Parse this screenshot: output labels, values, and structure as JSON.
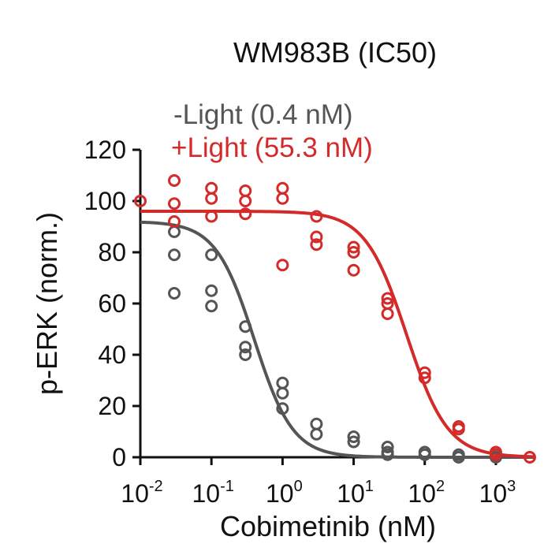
{
  "chart_data": {
    "type": "scatter",
    "title": "WM983B (IC50)",
    "xlabel": "Cobimetinib (nM)",
    "ylabel": "p-ERK (norm.)",
    "x_scale": "log",
    "xlim": [
      0.01,
      3500
    ],
    "ylim": [
      0,
      120
    ],
    "x_ticks": [
      {
        "value": 0.01,
        "base": "10",
        "exp": "-2"
      },
      {
        "value": 0.1,
        "base": "10",
        "exp": "-1"
      },
      {
        "value": 1,
        "base": "10",
        "exp": "0"
      },
      {
        "value": 10,
        "base": "10",
        "exp": "1"
      },
      {
        "value": 100,
        "base": "10",
        "exp": "2"
      },
      {
        "value": 1000,
        "base": "10",
        "exp": "3"
      }
    ],
    "y_ticks": [
      "0",
      "20",
      "40",
      "60",
      "80",
      "100",
      "120"
    ],
    "grid": false,
    "legend_position": "top-left",
    "series": [
      {
        "name": "-Light (0.4 nM)",
        "color": "#555555",
        "ic50": 0.4,
        "fit": {
          "top": 92,
          "bottom": 0,
          "hill": 1.6
        },
        "points": [
          {
            "x": 0.03,
            "y": 88
          },
          {
            "x": 0.03,
            "y": 79
          },
          {
            "x": 0.03,
            "y": 64
          },
          {
            "x": 0.1,
            "y": 79
          },
          {
            "x": 0.1,
            "y": 65
          },
          {
            "x": 0.1,
            "y": 59
          },
          {
            "x": 0.3,
            "y": 51
          },
          {
            "x": 0.3,
            "y": 43
          },
          {
            "x": 0.3,
            "y": 40
          },
          {
            "x": 1,
            "y": 29
          },
          {
            "x": 1,
            "y": 25
          },
          {
            "x": 1,
            "y": 19
          },
          {
            "x": 3,
            "y": 13
          },
          {
            "x": 3,
            "y": 9
          },
          {
            "x": 10,
            "y": 8
          },
          {
            "x": 10,
            "y": 6
          },
          {
            "x": 30,
            "y": 4
          },
          {
            "x": 30,
            "y": 2
          },
          {
            "x": 30,
            "y": 1
          },
          {
            "x": 100,
            "y": 2
          },
          {
            "x": 100,
            "y": 1
          },
          {
            "x": 300,
            "y": 1
          },
          {
            "x": 300,
            "y": 0
          },
          {
            "x": 1000,
            "y": 1
          },
          {
            "x": 1000,
            "y": 0
          }
        ]
      },
      {
        "name": "+Light (55.3 nM)",
        "color": "#d42a2a",
        "ic50": 55.3,
        "fit": {
          "top": 96,
          "bottom": 0,
          "hill": 1.5
        },
        "points": [
          {
            "x": 0.01,
            "y": 100
          },
          {
            "x": 0.03,
            "y": 108
          },
          {
            "x": 0.03,
            "y": 99
          },
          {
            "x": 0.03,
            "y": 92
          },
          {
            "x": 0.1,
            "y": 105
          },
          {
            "x": 0.1,
            "y": 101
          },
          {
            "x": 0.1,
            "y": 94
          },
          {
            "x": 0.3,
            "y": 104
          },
          {
            "x": 0.3,
            "y": 100
          },
          {
            "x": 0.3,
            "y": 95
          },
          {
            "x": 1,
            "y": 105
          },
          {
            "x": 1,
            "y": 101
          },
          {
            "x": 1,
            "y": 75
          },
          {
            "x": 3,
            "y": 94
          },
          {
            "x": 3,
            "y": 86
          },
          {
            "x": 3,
            "y": 83
          },
          {
            "x": 10,
            "y": 82
          },
          {
            "x": 10,
            "y": 80
          },
          {
            "x": 10,
            "y": 73
          },
          {
            "x": 30,
            "y": 62
          },
          {
            "x": 30,
            "y": 60
          },
          {
            "x": 30,
            "y": 56
          },
          {
            "x": 100,
            "y": 33
          },
          {
            "x": 100,
            "y": 31
          },
          {
            "x": 300,
            "y": 12
          },
          {
            "x": 300,
            "y": 11
          },
          {
            "x": 1000,
            "y": 2
          },
          {
            "x": 1000,
            "y": 1
          },
          {
            "x": 3000,
            "y": 0
          }
        ]
      }
    ]
  }
}
